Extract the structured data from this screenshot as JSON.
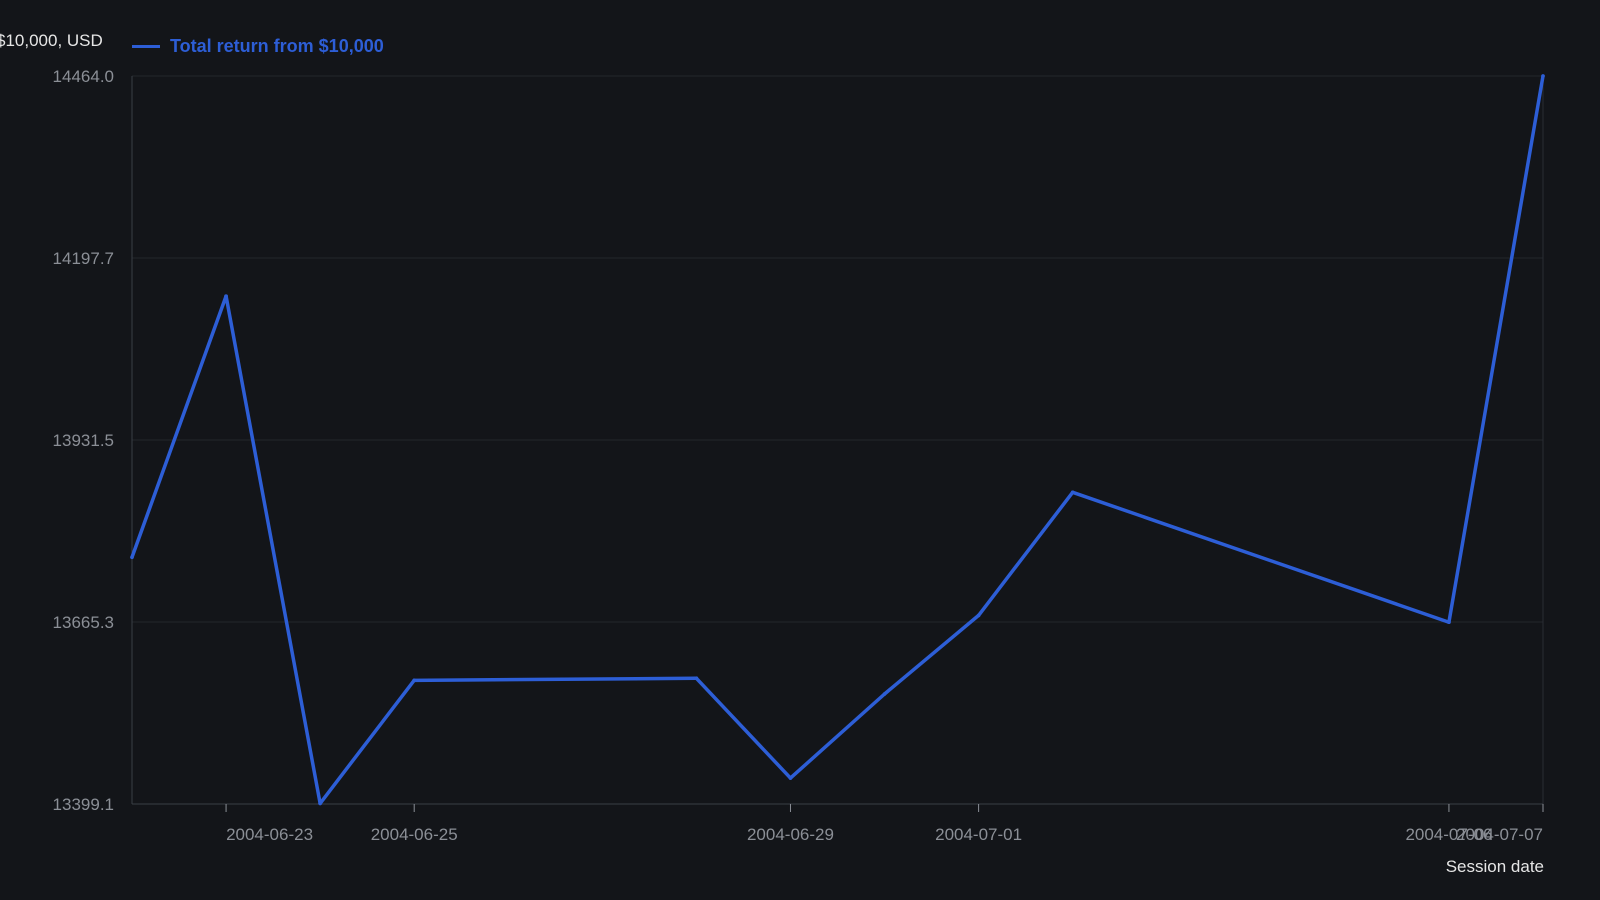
{
  "chart_data": {
    "type": "line",
    "title": "",
    "xlabel": "Session date",
    "ylabel": "$10,000, USD",
    "ylim": [
      13399.1,
      14464.0
    ],
    "yticks": [
      "13399.1",
      "13665.3",
      "13931.5",
      "14197.7",
      "14464.0"
    ],
    "xticks": [
      "2004-06-23",
      "2004-06-25",
      "2004-06-29",
      "2004-07-01",
      "2004-07-06",
      "2004-07-07"
    ],
    "legend_position": "top-left",
    "grid": true,
    "colors": {
      "line": "#2d5ed6",
      "background": "#131519",
      "grid": "#23262c",
      "text": "#8b8f96"
    },
    "series": [
      {
        "name": "Total return from $10,000",
        "x": [
          "2004-06-22",
          "2004-06-23",
          "2004-06-24",
          "2004-06-25",
          "2004-06-28",
          "2004-06-29",
          "2004-06-30",
          "2004-07-01",
          "2004-07-02",
          "2004-07-06",
          "2004-07-07"
        ],
        "values": [
          13760,
          14142,
          13400,
          13580,
          13583,
          13437,
          13560,
          13675,
          13855,
          13665,
          14464
        ]
      }
    ]
  }
}
